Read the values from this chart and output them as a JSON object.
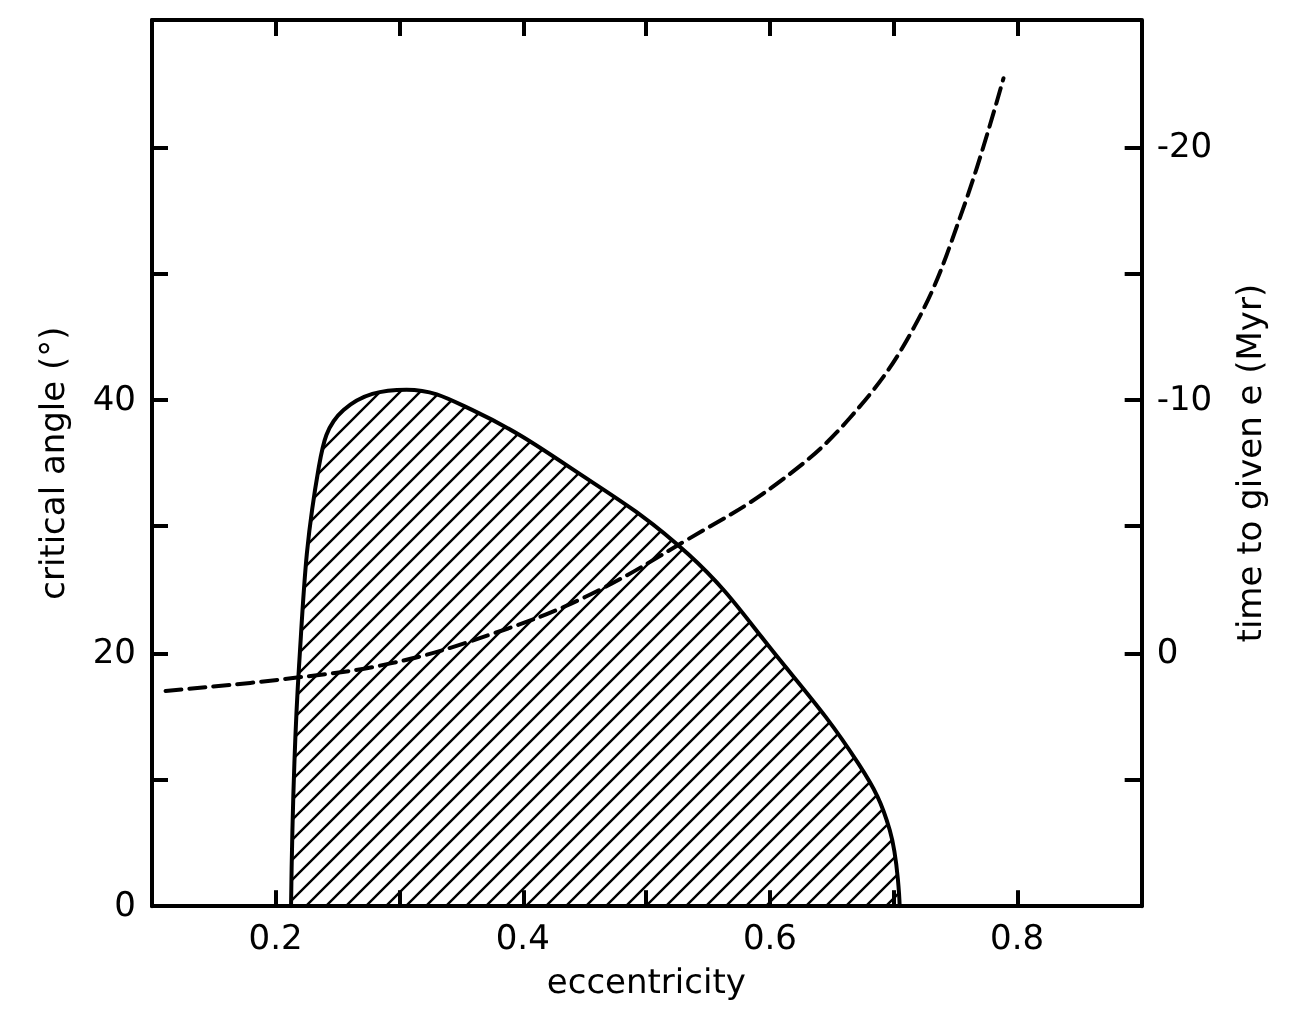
{
  "chart_data": {
    "type": "line",
    "xlabel": "eccentricity",
    "ylabel": "critical angle (°)",
    "y2label": "time to given e (Myr)",
    "xlim": [
      0.1,
      0.9
    ],
    "xticks": [
      0.2,
      {
        "value": 0.3,
        "label": null
      },
      0.4,
      {
        "value": 0.5,
        "label": null
      },
      0.6,
      {
        "value": 0.7,
        "label": null
      },
      0.8
    ],
    "ylim": [
      0,
      70
    ],
    "yticks": [
      0,
      {
        "value": 10,
        "label": null
      },
      20,
      {
        "value": 30,
        "label": null
      },
      40,
      {
        "value": 50,
        "label": null
      },
      {
        "value": 60,
        "label": null
      }
    ],
    "y2lim": [
      10,
      -25
    ],
    "y2ticks": [
      {
        "value": 5,
        "label": null
      },
      0,
      {
        "value": -5,
        "label": null
      },
      -10,
      {
        "value": -15,
        "label": null
      },
      -20
    ],
    "grid": false,
    "marker": "none",
    "series": [
      {
        "type": "area",
        "color": "#000000",
        "line_style": "solid",
        "x": [
          0.2125,
          0.219,
          0.235,
          0.255,
          0.306,
          0.359,
          0.4375,
          0.534,
          0.606,
          0.672,
          0.697,
          0.705
        ],
        "values": [
          0,
          19,
          34.7,
          39.2,
          40.8,
          39.2,
          34.7,
          27.8,
          19.7,
          11.2,
          6,
          0
        ]
      },
      {
        "type": "line",
        "axis": "y2",
        "color": "#000000",
        "line_style": "dashed",
        "x": [
          0.111,
          0.2125,
          0.294,
          0.372,
          0.45,
          0.534,
          0.606,
          0.665,
          0.717,
          0.756,
          0.789
        ],
        "values": [
          1.5,
          1.0,
          0.4,
          -0.7,
          -2.2,
          -4.5,
          -6.7,
          -9.3,
          -12.9,
          -17.5,
          -22.7
        ]
      }
    ]
  }
}
